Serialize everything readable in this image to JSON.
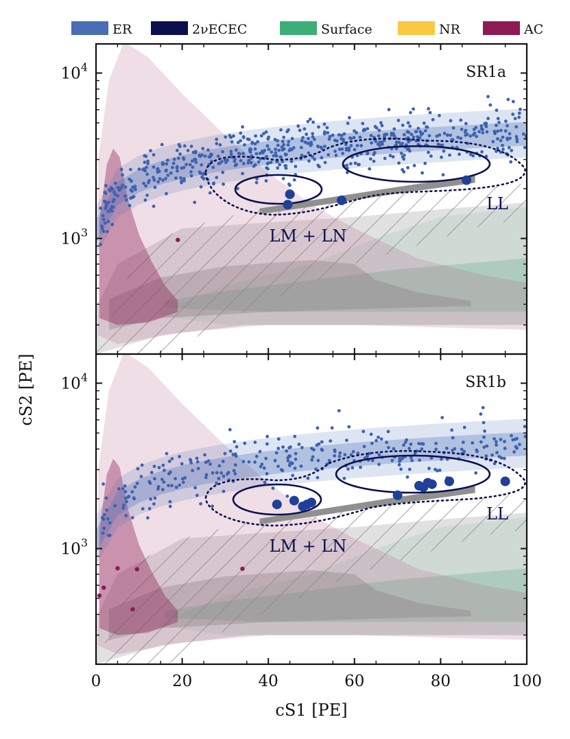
{
  "chart_data": {
    "type": "scatter",
    "xlabel": "cS1 [PE]",
    "ylabel": "cS2 [PE]",
    "xlim": [
      0,
      100
    ],
    "ylim": [
      200,
      15000
    ],
    "yscale": "log",
    "x_ticks": [
      {
        "value": 0,
        "label": "0"
      },
      {
        "value": 20,
        "label": "20"
      },
      {
        "value": 40,
        "label": "40"
      },
      {
        "value": 60,
        "label": "60"
      },
      {
        "value": 80,
        "label": "80"
      },
      {
        "value": 100,
        "label": "100"
      }
    ],
    "y_ticks": [
      {
        "value": 1000,
        "base": "10",
        "exp": "3"
      },
      {
        "value": 10000,
        "base": "10",
        "exp": "4"
      }
    ],
    "legend": {
      "placement": "top",
      "items": [
        {
          "label": "ER",
          "color": "#4a6db5"
        },
        {
          "label": "2νECEC",
          "color": "#0b0f4e"
        },
        {
          "label": "Surface",
          "color": "#3eae78"
        },
        {
          "label": "NR",
          "color": "#fbc743"
        },
        {
          "label": "AC",
          "color": "#8b1a55"
        }
      ]
    },
    "panels": [
      {
        "title": "SR1a",
        "annotations": [
          {
            "text": "LM + LN",
            "x": 45,
            "y": 930
          },
          {
            "text": "LL",
            "x": 94,
            "y": 1540
          }
        ],
        "ecec_points": [
          {
            "x": 44.5,
            "y": 1600
          },
          {
            "x": 45,
            "y": 1850
          },
          {
            "x": 57,
            "y": 1700
          },
          {
            "x": 86,
            "y": 2250
          }
        ],
        "ac_points": [
          {
            "x": 19,
            "y": 980
          }
        ]
      },
      {
        "title": "SR1b",
        "annotations": [
          {
            "text": "LM + LN",
            "x": 45,
            "y": 930
          },
          {
            "text": "LL",
            "x": 94,
            "y": 1540
          }
        ],
        "ecec_points": [
          {
            "x": 42,
            "y": 1850
          },
          {
            "x": 46,
            "y": 1950
          },
          {
            "x": 48,
            "y": 1800
          },
          {
            "x": 49,
            "y": 1850
          },
          {
            "x": 50,
            "y": 1900
          },
          {
            "x": 70,
            "y": 2100
          },
          {
            "x": 75,
            "y": 2400
          },
          {
            "x": 76,
            "y": 2350
          },
          {
            "x": 77,
            "y": 2500
          },
          {
            "x": 78,
            "y": 2450
          },
          {
            "x": 82,
            "y": 2550
          },
          {
            "x": 95,
            "y": 2550
          }
        ],
        "ac_points": [
          {
            "x": 0.8,
            "y": 520
          },
          {
            "x": 1.8,
            "y": 580
          },
          {
            "x": 5,
            "y": 760
          },
          {
            "x": 9.5,
            "y": 750
          },
          {
            "x": 8.5,
            "y": 430
          },
          {
            "x": 34,
            "y": 755
          }
        ]
      }
    ],
    "series": [
      {
        "name": "ER",
        "kind": "band-and-scatter",
        "n_points_SR1a": 600,
        "n_points_SR1b": 300
      },
      {
        "name": "2νECEC",
        "kind": "points"
      },
      {
        "name": "Surface",
        "kind": "model-band"
      },
      {
        "name": "NR",
        "kind": "model-band"
      },
      {
        "name": "AC",
        "kind": "model-band-and-points"
      }
    ]
  }
}
